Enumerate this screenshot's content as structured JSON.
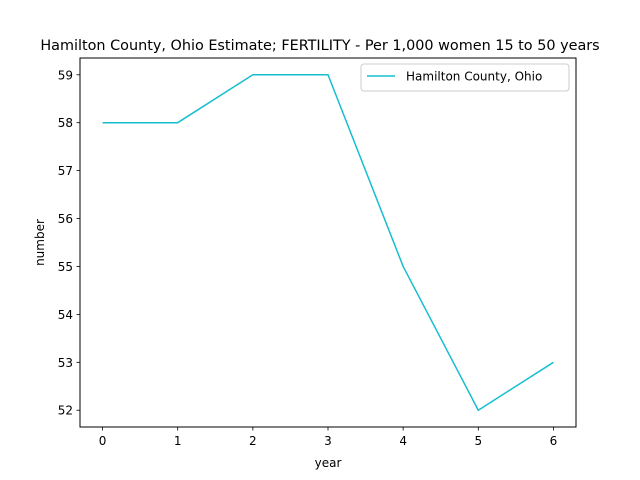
{
  "chart_data": {
    "type": "line",
    "title": "Hamilton County, Ohio Estimate; FERTILITY - Per 1,000 women 15 to 50 years",
    "xlabel": "year",
    "ylabel": "number",
    "x": [
      0,
      1,
      2,
      3,
      4,
      5,
      6
    ],
    "series": [
      {
        "name": "Hamilton County, Ohio",
        "values": [
          58,
          58,
          59,
          59,
          55,
          52,
          53
        ],
        "color": "#17becf"
      }
    ],
    "xlim": [
      -0.3,
      6.3
    ],
    "ylim": [
      51.65,
      59.35
    ],
    "xticks": [
      0,
      1,
      2,
      3,
      4,
      5,
      6
    ],
    "xtick_labels": [
      "0",
      "1",
      "2",
      "3",
      "4",
      "5",
      "6"
    ],
    "yticks": [
      52,
      53,
      54,
      55,
      56,
      57,
      58,
      59
    ],
    "ytick_labels": [
      "52",
      "53",
      "54",
      "55",
      "56",
      "57",
      "58",
      "59"
    ],
    "grid": false,
    "legend_position": "top-right"
  }
}
